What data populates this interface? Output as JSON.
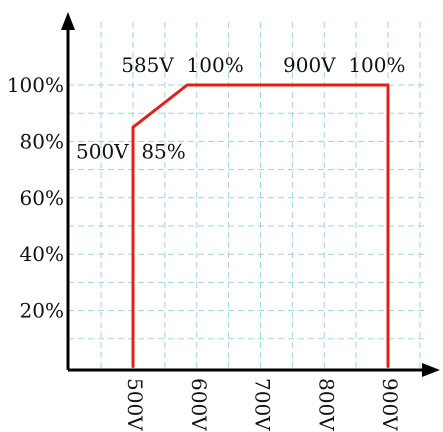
{
  "colors": {
    "series_line": "#e0201b",
    "grid": "#9fd3e6",
    "axis": "#000000",
    "text": "#111111"
  },
  "chart_data": {
    "type": "line",
    "title": "",
    "xlabel": "",
    "ylabel": "",
    "grid": true,
    "xlim": [
      390,
      1065
    ],
    "ylim": [
      -17,
      116
    ],
    "x_ticks": [
      {
        "value": 500,
        "label": "500V"
      },
      {
        "value": 600,
        "label": "600V"
      },
      {
        "value": 700,
        "label": "700V"
      },
      {
        "value": 800,
        "label": "800V"
      },
      {
        "value": 900,
        "label": "900V"
      }
    ],
    "y_ticks": [
      {
        "value": 20,
        "label": "20%"
      },
      {
        "value": 40,
        "label": "40%"
      },
      {
        "value": 60,
        "label": "60%"
      },
      {
        "value": 80,
        "label": "80%"
      },
      {
        "value": 100,
        "label": "100%"
      }
    ],
    "grid_x": [
      450,
      550,
      650,
      750,
      850,
      950
    ],
    "grid_y": [
      10,
      30,
      50,
      70,
      90
    ],
    "series": [
      {
        "points": [
          {
            "x": 500,
            "y": 0
          },
          {
            "x": 500,
            "y": 85
          },
          {
            "x": 585,
            "y": 100
          },
          {
            "x": 900,
            "y": 100
          },
          {
            "x": 900,
            "y": 0
          }
        ]
      }
    ],
    "annotations": [
      {
        "text": "585V  100%",
        "x": 585,
        "y": 100
      },
      {
        "text": "900V  100%",
        "x": 900,
        "y": 100
      },
      {
        "text": "500V  85%",
        "x": 500,
        "y": 85
      }
    ]
  }
}
